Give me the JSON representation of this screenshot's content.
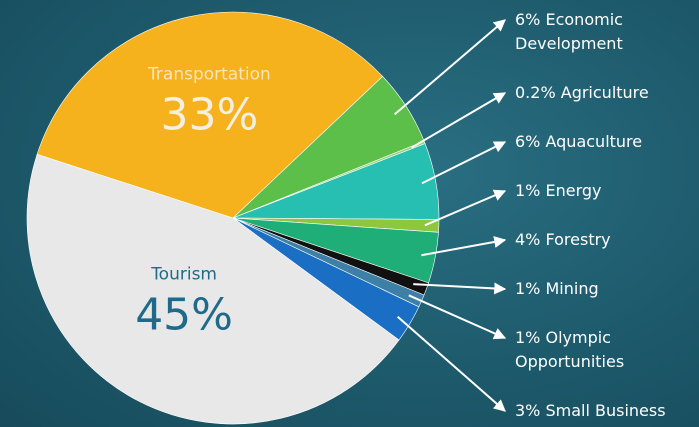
{
  "chart_data": {
    "type": "pie",
    "categories": [
      "Transportation",
      "Economic Development",
      "Agriculture",
      "Aquaculture",
      "Energy",
      "Forestry",
      "Mining",
      "Olympic Opportunities",
      "Small Business",
      "Tourism"
    ],
    "values": [
      33,
      6,
      0.2,
      6,
      1,
      4,
      1,
      1,
      3,
      45
    ],
    "value_labels": [
      "33%",
      "6%",
      "0.2%",
      "6%",
      "1%",
      "4%",
      "1%",
      "1%",
      "3%",
      "45%"
    ],
    "colors": [
      "#f5b21c",
      "#5cbf4a",
      "#9ad27f",
      "#27bfb1",
      "#8dc63f",
      "#1fae78",
      "#111111",
      "#3d7fa6",
      "#1a6fc4",
      "#e8e8e8"
    ]
  }
}
